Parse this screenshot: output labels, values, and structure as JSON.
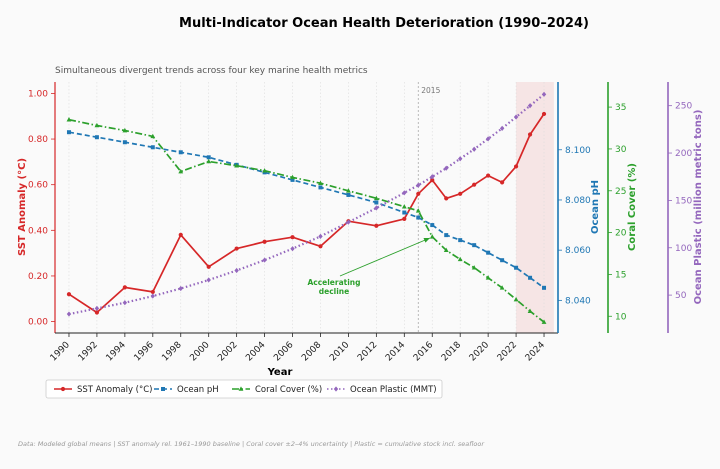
{
  "colors": {
    "sst": "#d62728",
    "ph": "#1f77b4",
    "coral": "#2ca02c",
    "plastic": "#9467bd",
    "background": "#fafafa",
    "highlight": "#f4dcdc"
  },
  "chart_data": {
    "type": "line",
    "title": "Multi-Indicator Ocean Health Deterioration (1990–2024)",
    "subtitle": "Simultaneous divergent trends across four key marine health metrics",
    "xlabel": "Year",
    "x": [
      1990,
      1992,
      1994,
      1996,
      1998,
      2000,
      2002,
      2004,
      2006,
      2008,
      2010,
      2012,
      2014,
      2015,
      2016,
      2017,
      2018,
      2019,
      2020,
      2021,
      2022,
      2023,
      2024
    ],
    "xticks": [
      "1990",
      "1992",
      "1994",
      "1996",
      "1998",
      "2000",
      "2002",
      "2004",
      "2006",
      "2008",
      "2010",
      "2012",
      "2014",
      "2016",
      "2018",
      "2020",
      "2022",
      "2024"
    ],
    "xlim": [
      1989,
      2025
    ],
    "series": [
      {
        "name": "SST Anomaly (°C)",
        "axis": "y1",
        "style": "solid",
        "marker": "circle",
        "values": [
          0.12,
          0.04,
          0.15,
          0.13,
          0.38,
          0.24,
          0.32,
          0.35,
          0.37,
          0.33,
          0.44,
          0.42,
          0.45,
          0.56,
          0.62,
          0.54,
          0.56,
          0.6,
          0.64,
          0.61,
          0.68,
          0.82,
          0.91
        ]
      },
      {
        "name": "Ocean pH",
        "axis": "y2",
        "style": "dashed",
        "marker": "square",
        "values": [
          8.107,
          8.105,
          8.103,
          8.101,
          8.099,
          8.097,
          8.094,
          8.091,
          8.088,
          8.085,
          8.082,
          8.079,
          8.075,
          8.073,
          8.07,
          8.066,
          8.064,
          8.062,
          8.059,
          8.056,
          8.053,
          8.049,
          8.045
        ]
      },
      {
        "name": "Coral Cover (%)",
        "axis": "y3",
        "style": "dashdot",
        "marker": "triangle",
        "values": [
          33.5,
          32.8,
          32.2,
          31.5,
          27.3,
          28.5,
          28.0,
          27.4,
          26.6,
          25.9,
          25.0,
          24.1,
          23.1,
          22.6,
          19.5,
          17.9,
          16.8,
          15.8,
          14.6,
          13.4,
          12.0,
          10.6,
          9.3
        ]
      },
      {
        "name": "Ocean Plastic (MMT)",
        "axis": "y4",
        "style": "dotted",
        "marker": "diamond",
        "values": [
          30,
          36,
          42,
          49,
          57,
          66,
          76,
          87,
          99,
          112,
          127,
          142,
          158,
          166,
          175,
          184,
          194,
          204,
          215,
          226,
          238,
          250,
          262
        ]
      }
    ],
    "axes": {
      "y1": {
        "label": "SST Anomaly (°C)",
        "ylim": [
          -0.05,
          1.05
        ],
        "ticks": [
          "0.00",
          "0.20",
          "0.40",
          "0.60",
          "0.80",
          "1.00"
        ],
        "tick_values": [
          0,
          0.2,
          0.4,
          0.6,
          0.8,
          1.0
        ]
      },
      "y2": {
        "label": "Ocean pH",
        "ylim": [
          8.027,
          8.127
        ],
        "ticks": [
          "8.040",
          "8.060",
          "8.080",
          "8.100"
        ],
        "tick_values": [
          8.04,
          8.06,
          8.08,
          8.1
        ]
      },
      "y3": {
        "label": "Coral Cover (%)",
        "ylim": [
          8.0,
          38.0
        ],
        "ticks": [
          "10",
          "15",
          "20",
          "25",
          "30",
          "35"
        ],
        "tick_values": [
          10,
          15,
          20,
          25,
          30,
          35
        ]
      },
      "y4": {
        "label": "Ocean Plastic (million metric tons)",
        "ylim": [
          10,
          275
        ],
        "ticks": [
          "50",
          "100",
          "150",
          "200",
          "250"
        ],
        "tick_values": [
          50,
          100,
          150,
          200,
          250
        ]
      }
    },
    "annotations": [
      {
        "text_line1": "Accelerating",
        "text_line2": "decline"
      },
      {
        "text": "2015",
        "x": 2015
      }
    ],
    "highlight_range": [
      2022,
      2024.7
    ],
    "legend": {
      "placement": "bottom-left",
      "entries": [
        "SST Anomaly (°C)",
        "Ocean pH",
        "Coral Cover (%)",
        "Ocean Plastic (MMT)"
      ]
    },
    "grid": "vertical"
  },
  "footnote": "Data: Modeled global means | SST anomaly rel. 1961–1990 baseline | Coral cover ±2–4% uncertainty | Plastic = cumulative stock incl. seafloor"
}
